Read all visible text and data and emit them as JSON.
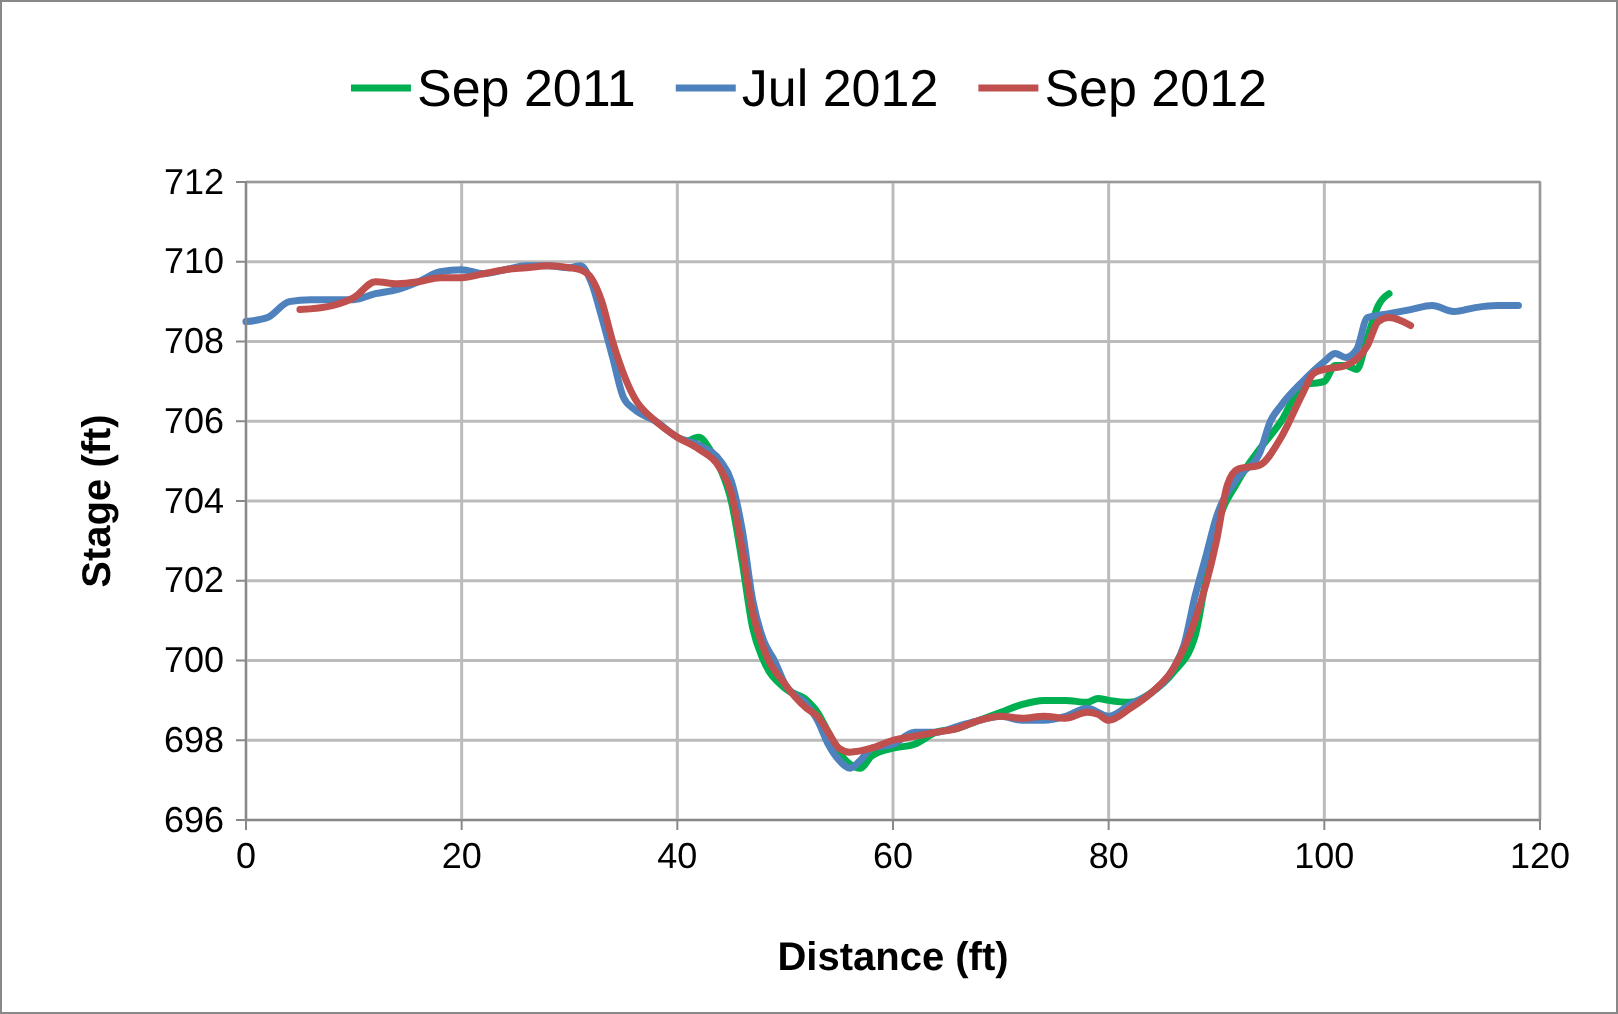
{
  "chart_data": {
    "type": "line",
    "xlabel": "Distance (ft)",
    "ylabel": "Stage (ft)",
    "xlim": [
      0,
      120
    ],
    "xticks": [
      0,
      20,
      40,
      60,
      80,
      100,
      120
    ],
    "ylim": [
      696,
      712
    ],
    "yticks": [
      696,
      698,
      700,
      702,
      704,
      706,
      708,
      710,
      712
    ],
    "grid": true,
    "legend": "top",
    "marker": "none",
    "line_style": "solid",
    "series": [
      {
        "name": "Sep 2011",
        "color": "#00b050",
        "x": [
          41,
          42,
          43,
          44,
          45,
          46,
          47,
          48,
          50,
          52,
          53,
          54,
          55,
          56,
          57,
          58,
          60,
          62,
          64,
          66,
          68,
          70,
          72,
          74,
          76,
          78,
          79,
          80,
          82,
          84,
          86,
          88,
          89,
          90,
          92,
          94,
          96,
          98,
          100,
          101,
          102,
          103,
          104,
          105,
          106
        ],
        "values": [
          705.5,
          705.6,
          705.3,
          704.8,
          704.0,
          702.5,
          700.8,
          700.0,
          699.3,
          699.0,
          698.7,
          698.2,
          697.7,
          697.4,
          697.3,
          697.6,
          697.8,
          697.9,
          698.2,
          698.3,
          698.5,
          698.7,
          698.9,
          699.0,
          699.0,
          698.95,
          699.05,
          699.0,
          698.95,
          699.2,
          699.7,
          700.6,
          702.0,
          703.3,
          704.5,
          705.3,
          706.0,
          706.9,
          707.0,
          707.4,
          707.4,
          707.3,
          708.1,
          708.9,
          709.2
        ]
      },
      {
        "name": "Jul 2012",
        "color": "#4f81bd",
        "x": [
          0,
          2,
          4,
          6,
          8,
          10,
          12,
          14,
          16,
          18,
          20,
          22,
          24,
          26,
          28,
          30,
          31,
          32,
          33,
          34,
          35,
          36,
          38,
          40,
          42,
          44,
          45,
          46,
          47,
          48,
          49,
          50,
          52,
          53,
          54,
          55,
          56,
          57,
          58,
          60,
          62,
          64,
          66,
          68,
          70,
          72,
          74,
          76,
          78,
          80,
          82,
          84,
          86,
          87,
          88,
          89,
          90,
          92,
          94,
          95,
          96,
          98,
          100,
          101,
          102,
          103,
          104,
          106,
          108,
          110,
          112,
          114,
          116,
          118
        ],
        "values": [
          708.5,
          708.6,
          709.0,
          709.05,
          709.05,
          709.05,
          709.2,
          709.3,
          709.5,
          709.75,
          709.8,
          709.7,
          709.8,
          709.9,
          709.9,
          709.85,
          709.9,
          709.5,
          708.6,
          707.6,
          706.6,
          706.3,
          706.0,
          705.6,
          705.4,
          705.0,
          704.5,
          703.3,
          701.5,
          700.5,
          700.0,
          699.4,
          698.9,
          698.5,
          697.9,
          697.5,
          697.3,
          697.5,
          697.8,
          697.9,
          698.2,
          698.2,
          698.35,
          698.5,
          698.6,
          698.5,
          698.5,
          698.6,
          698.8,
          698.6,
          698.9,
          699.2,
          699.8,
          700.4,
          701.6,
          702.6,
          703.6,
          704.6,
          705.2,
          706.0,
          706.4,
          707.0,
          707.5,
          707.7,
          707.6,
          707.8,
          708.6,
          708.7,
          708.8,
          708.9,
          708.75,
          708.85,
          708.9,
          708.9
        ]
      },
      {
        "name": "Sep 2012",
        "color": "#c0504d",
        "x": [
          5,
          8,
          10,
          12,
          14,
          16,
          18,
          20,
          22,
          24,
          26,
          28,
          30,
          31,
          32,
          33,
          34,
          35,
          36,
          38,
          40,
          42,
          44,
          45,
          46,
          47,
          48,
          50,
          52,
          53,
          54,
          55,
          56,
          58,
          60,
          62,
          64,
          66,
          68,
          70,
          72,
          74,
          76,
          78,
          79,
          80,
          82,
          84,
          86,
          88,
          90,
          91,
          92,
          94,
          96,
          98,
          99,
          100,
          102,
          104,
          105,
          106,
          108
        ],
        "values": [
          708.8,
          708.9,
          709.1,
          709.5,
          709.45,
          709.5,
          709.6,
          709.6,
          709.7,
          709.8,
          709.85,
          709.9,
          709.85,
          709.8,
          709.6,
          709.0,
          708.0,
          707.2,
          706.6,
          706.0,
          705.6,
          705.3,
          704.8,
          704.2,
          702.8,
          701.2,
          700.3,
          699.4,
          698.8,
          698.6,
          698.2,
          697.8,
          697.7,
          697.8,
          698.0,
          698.1,
          698.2,
          698.3,
          698.5,
          698.6,
          698.55,
          698.6,
          698.55,
          698.7,
          698.65,
          698.5,
          698.8,
          699.2,
          699.8,
          701.0,
          703.0,
          704.4,
          704.8,
          704.9,
          705.6,
          706.7,
          707.2,
          707.3,
          707.4,
          707.9,
          708.5,
          708.6,
          708.4
        ]
      }
    ]
  }
}
